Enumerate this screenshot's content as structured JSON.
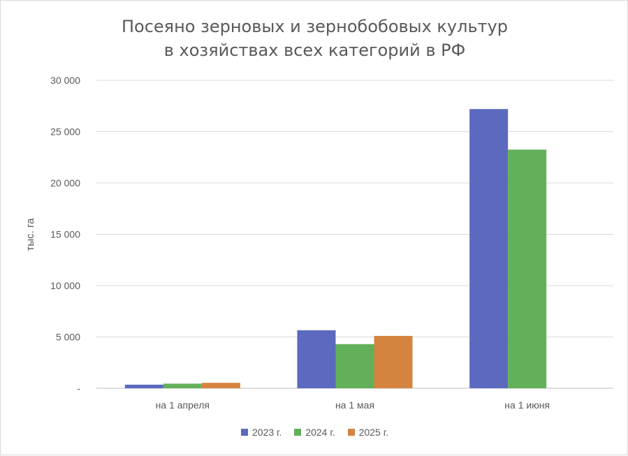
{
  "chart_data": {
    "type": "bar",
    "title": [
      "Посеяно зерновых и зернобобовых культур",
      "в хозяйствах всех категорий в РФ"
    ],
    "ylabel": "тыс. га",
    "categories": [
      "на 1 апреля",
      "на 1 мая",
      "на 1 июня"
    ],
    "series": [
      {
        "name": "2023 г.",
        "color": "#5b6abf",
        "values": [
          350,
          5650,
          27200
        ]
      },
      {
        "name": "2024 г.",
        "color": "#63b05a",
        "values": [
          450,
          4300,
          23250
        ]
      },
      {
        "name": "2025 г.",
        "color": "#d4843f",
        "values": [
          530,
          5100,
          null
        ]
      }
    ],
    "ylim": [
      0,
      30000
    ],
    "yticks": [
      0,
      5000,
      10000,
      15000,
      20000,
      25000,
      30000
    ],
    "ytick_labels": [
      "-",
      "5 000",
      "10 000",
      "15 000",
      "20 000",
      "25 000",
      "30 000"
    ],
    "grid": true,
    "legend_position": "bottom"
  }
}
